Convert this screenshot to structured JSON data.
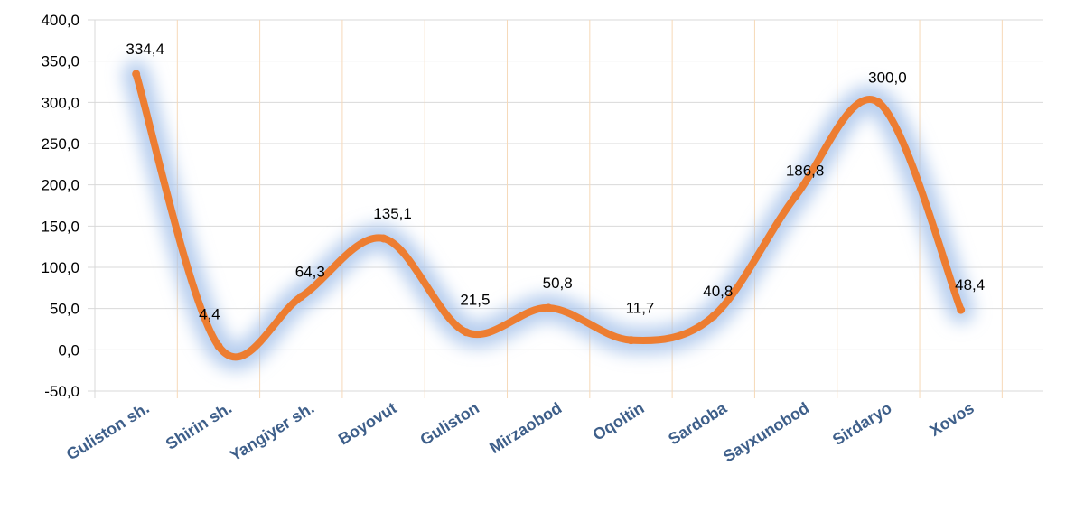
{
  "chart_data": {
    "type": "line",
    "categories": [
      "Guliston  sh.",
      "Shirin sh.",
      "Yangiyer sh.",
      "Boyovut",
      "Guliston",
      "Mirzaobod",
      "Oqoltin",
      "Sardoba",
      "Sayxunobod",
      "Sirdaryo",
      "Xovos"
    ],
    "series": [
      {
        "values": [
          334.4,
          4.4,
          64.3,
          135.1,
          21.5,
          50.8,
          11.7,
          40.8,
          186.8,
          300.0,
          48.4
        ],
        "labels": [
          "334,4",
          "4,4",
          "64,3",
          "135,1",
          "21,5",
          "50,8",
          "11,7",
          "40,8",
          "186,8",
          "300,0",
          "48,4"
        ],
        "color": "#ed7d31"
      }
    ],
    "ylim": [
      -50,
      400
    ],
    "yticks": [
      400,
      350,
      300,
      250,
      200,
      150,
      100,
      50,
      0,
      -50
    ],
    "ytick_labels": [
      "400,0",
      "350,0",
      "300,0",
      "250,0",
      "200,0",
      "150,0",
      "100,0",
      "50,0",
      "0,0",
      "-50,0"
    ],
    "grid": true,
    "smooth": true,
    "legend": "none",
    "colors": {
      "line": "#ed7d31",
      "glow": "#a9c4eb",
      "grid": "#f6d9b8",
      "axis": "#d9d9d9",
      "xtick": "#3e5f8a"
    }
  }
}
